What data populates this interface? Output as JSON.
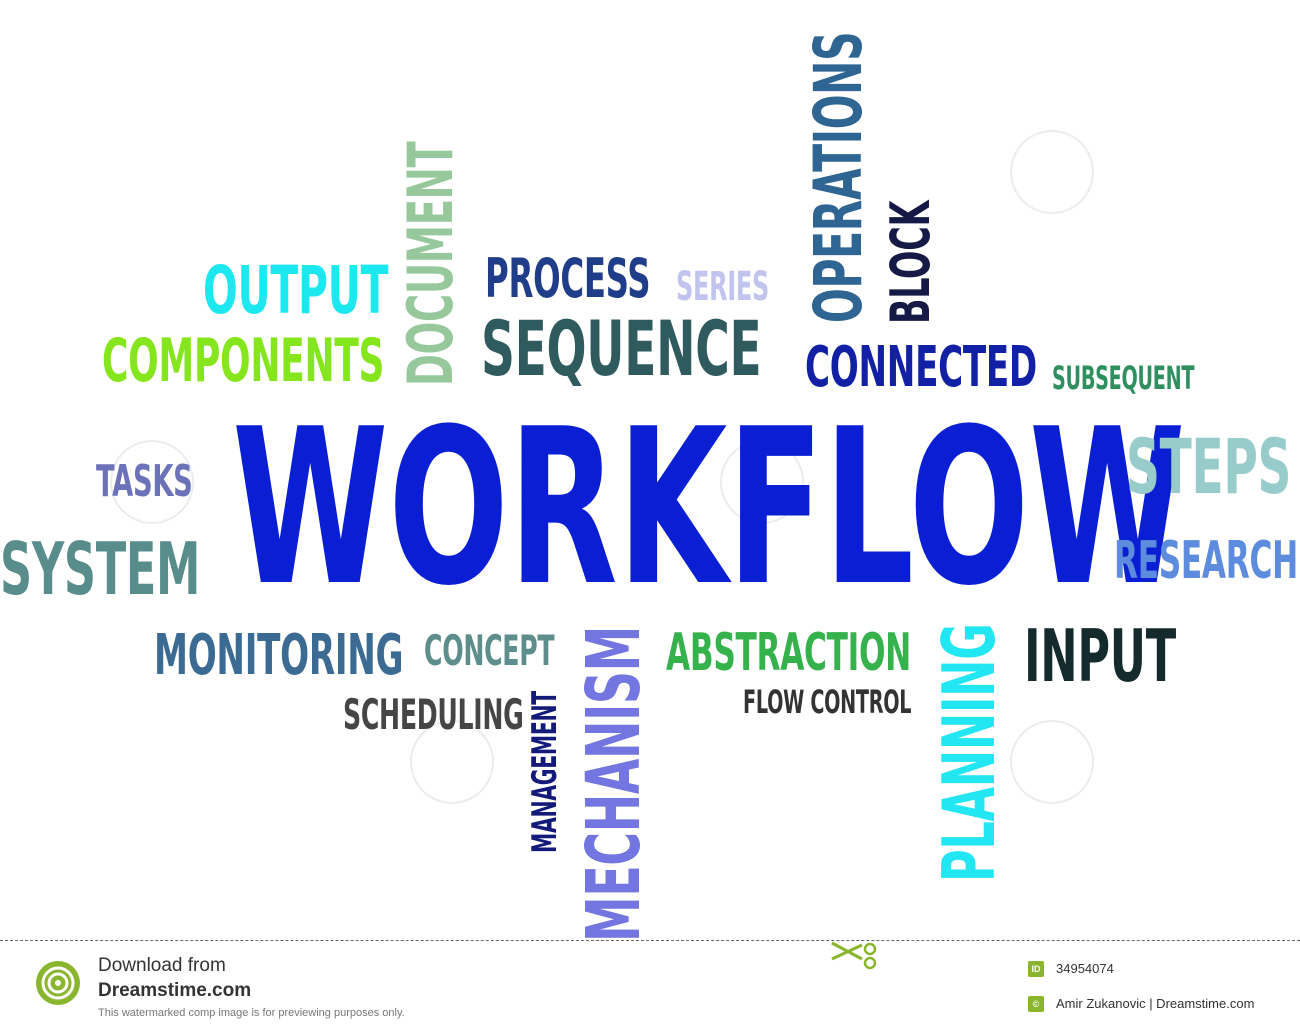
{
  "word_cloud": {
    "words": [
      {
        "text": "WORKFLOW",
        "color": "#0a1fd4",
        "rotated": false
      },
      {
        "text": "OUTPUT",
        "color": "#1de8f0",
        "rotated": false
      },
      {
        "text": "COMPONENTS",
        "color": "#86e61e",
        "rotated": false
      },
      {
        "text": "DOCUMENT",
        "color": "#96c89c",
        "rotated": true
      },
      {
        "text": "PROCESS",
        "color": "#203d8a",
        "rotated": false
      },
      {
        "text": "SERIES",
        "color": "#c0c4ee",
        "rotated": false
      },
      {
        "text": "SEQUENCE",
        "color": "#2f5a5e",
        "rotated": false
      },
      {
        "text": "OPERATIONS",
        "color": "#2f6592",
        "rotated": true
      },
      {
        "text": "BLOCK",
        "color": "#141a45",
        "rotated": true
      },
      {
        "text": "CONNECTED",
        "color": "#1220a6",
        "rotated": false
      },
      {
        "text": "SUBSEQUENT",
        "color": "#2f8f5e",
        "rotated": false
      },
      {
        "text": "TASKS",
        "color": "#6b72b8",
        "rotated": false
      },
      {
        "text": "SYSTEM",
        "color": "#598d8c",
        "rotated": false
      },
      {
        "text": "STEPS",
        "color": "#98cccb",
        "rotated": false
      },
      {
        "text": "RESEARCH",
        "color": "#5d8bde",
        "rotated": false
      },
      {
        "text": "MONITORING",
        "color": "#3b6a93",
        "rotated": false
      },
      {
        "text": "CONCEPT",
        "color": "#5d8e8b",
        "rotated": false
      },
      {
        "text": "SCHEDULING",
        "color": "#454545",
        "rotated": false
      },
      {
        "text": "MANAGEMENT",
        "color": "#131a7a",
        "rotated": true
      },
      {
        "text": "MECHANISM",
        "color": "#7375e0",
        "rotated": true
      },
      {
        "text": "ABSTRACTION",
        "color": "#36b24c",
        "rotated": false
      },
      {
        "text": "FLOW CONTROL",
        "color": "#333333",
        "rotated": false
      },
      {
        "text": "PLANNING",
        "color": "#22e6f1",
        "rotated": true
      },
      {
        "text": "INPUT",
        "color": "#142a2c",
        "rotated": false
      }
    ]
  },
  "footer": {
    "download_label": "Download from",
    "site_name": "Dreamstime.com",
    "disclaimer": "This watermarked comp image is for previewing purposes only.",
    "id_badge": "ID",
    "image_id": "34954074",
    "copyright_badge": "©",
    "author_credit": "Amir Zukanovic | Dreamstime.com",
    "accent_color": "#8ab52e"
  }
}
